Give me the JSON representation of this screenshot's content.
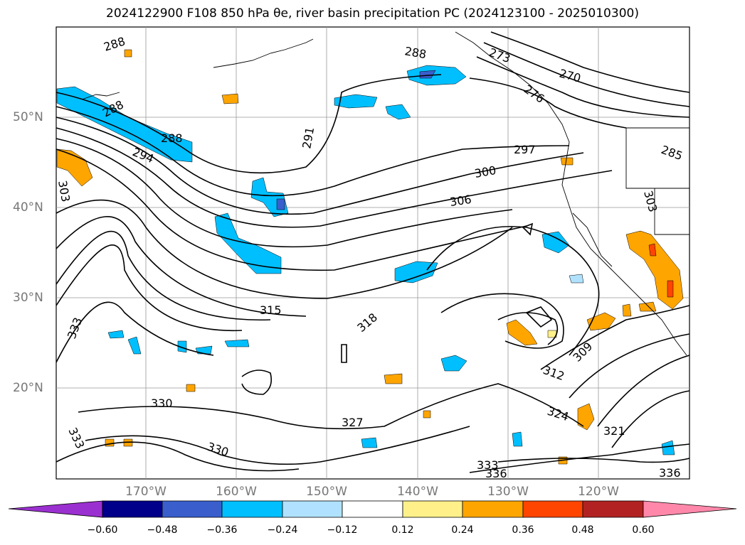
{
  "title": "2024122900 F108 850 hPa θe, river basin precipitation PC (2024123100 - 2025010300)",
  "lat_labels": [
    "50°N",
    "40°N",
    "30°N",
    "20°N"
  ],
  "lon_labels": [
    "170°W",
    "160°W",
    "150°W",
    "140°W",
    "130°W",
    "120°W"
  ],
  "contour_labels": [
    "288",
    "288",
    "288",
    "288",
    "273",
    "270",
    "276",
    "285",
    "291",
    "294",
    "297",
    "300",
    "303",
    "303",
    "306",
    "309",
    "312",
    "315",
    "318",
    "321",
    "324",
    "327",
    "330",
    "330",
    "333",
    "333",
    "336",
    "336",
    "333"
  ],
  "colorbar": {
    "ticks": [
      "−0.60",
      "−0.48",
      "−0.36",
      "−0.24",
      "−0.12",
      "0.12",
      "0.24",
      "0.36",
      "0.48",
      "0.60"
    ],
    "colors": [
      "#9b30d0",
      "#00008b",
      "#3a5fcd",
      "#00bfff",
      "#b0e2ff",
      "#ffffff",
      "#fff08a",
      "#ffa500",
      "#ff4500",
      "#b22222",
      "#ff88aa"
    ]
  }
}
